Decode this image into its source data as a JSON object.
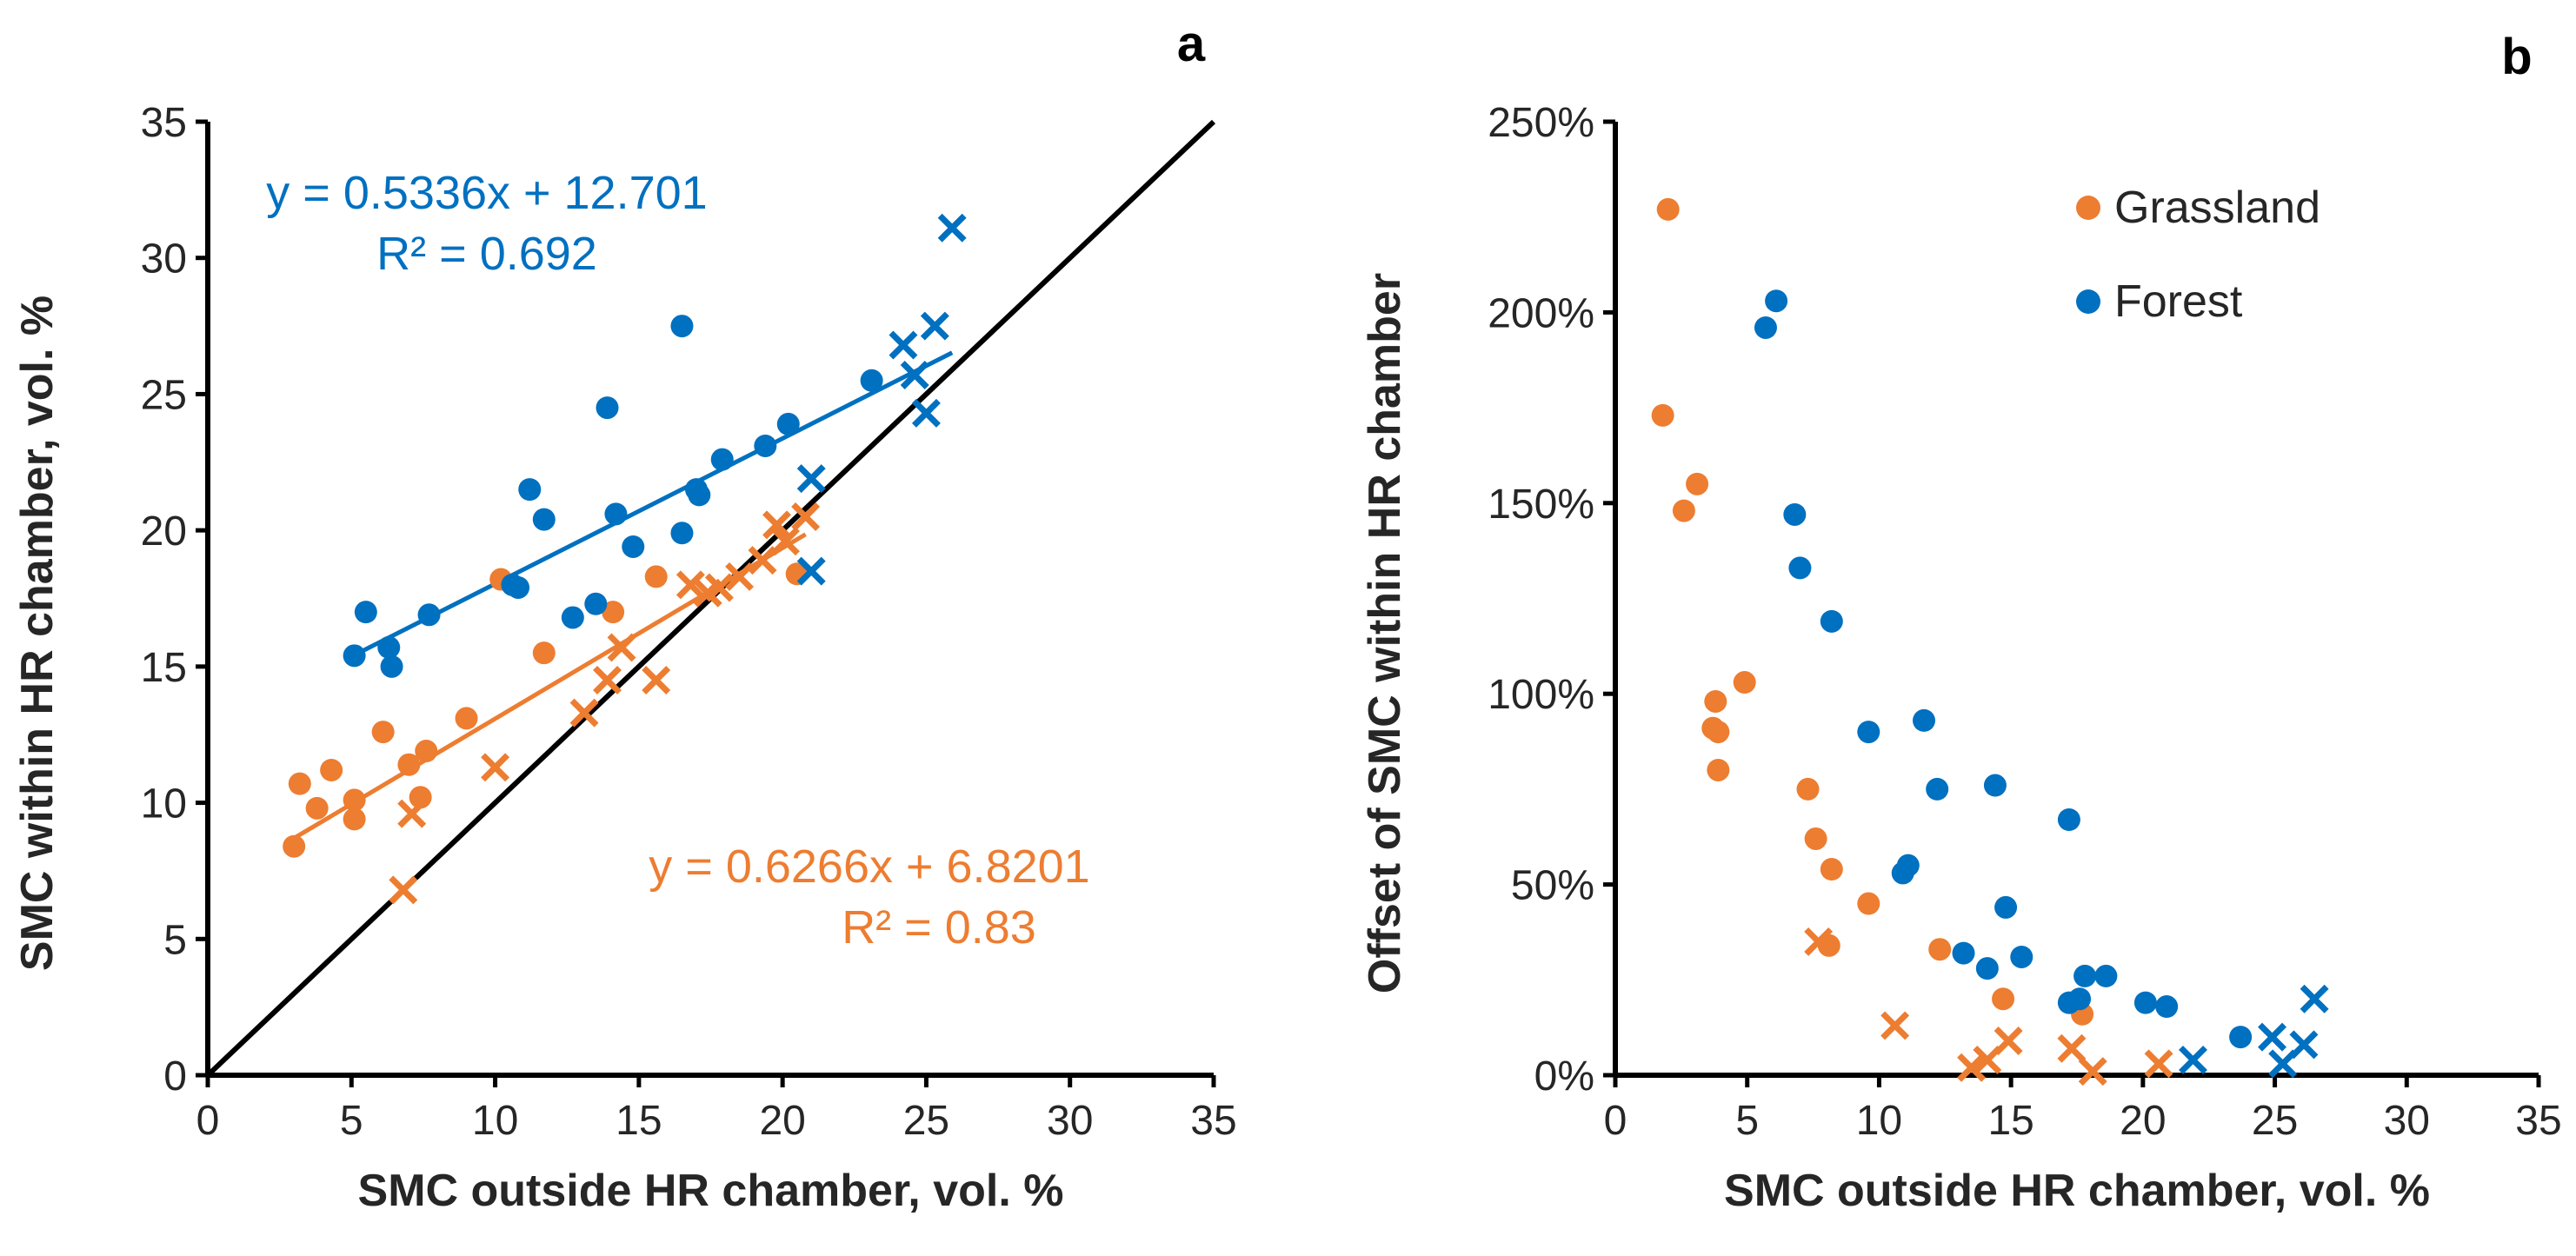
{
  "colors": {
    "grassland": "#ED7D31",
    "forest": "#0070C0",
    "axis": "#000000"
  },
  "chart_data": [
    {
      "type": "scatter",
      "panel_label": "a",
      "xlabel": "SMC outside HR chamber, vol. %",
      "ylabel": "SMC within HR chamber, vol. %",
      "xlim": [
        0,
        35
      ],
      "ylim": [
        0,
        35
      ],
      "xticks": [
        "0",
        "5",
        "10",
        "15",
        "20",
        "25",
        "30",
        "35"
      ],
      "yticks": [
        "0",
        "5",
        "10",
        "15",
        "20",
        "25",
        "30",
        "35"
      ],
      "reference_line": "1:1",
      "series": [
        {
          "name": "Grassland (circle)",
          "color_key": "grassland",
          "marker": "circle",
          "points": [
            [
              3.0,
              8.4
            ],
            [
              3.2,
              10.7
            ],
            [
              3.8,
              9.8
            ],
            [
              4.3,
              11.2
            ],
            [
              5.1,
              10.1
            ],
            [
              5.1,
              9.4
            ],
            [
              6.1,
              12.6
            ],
            [
              7.0,
              11.4
            ],
            [
              7.6,
              11.9
            ],
            [
              7.4,
              10.2
            ],
            [
              9.0,
              13.1
            ],
            [
              10.2,
              18.2
            ],
            [
              11.7,
              15.5
            ],
            [
              14.1,
              17.0
            ],
            [
              15.6,
              18.3
            ],
            [
              20.5,
              18.4
            ]
          ]
        },
        {
          "name": "Grassland (cross)",
          "color_key": "grassland",
          "marker": "x",
          "points": [
            [
              6.8,
              6.8
            ],
            [
              7.1,
              9.6
            ],
            [
              10.0,
              11.3
            ],
            [
              13.1,
              13.3
            ],
            [
              13.9,
              14.5
            ],
            [
              14.4,
              15.7
            ],
            [
              15.6,
              14.5
            ],
            [
              16.8,
              18.0
            ],
            [
              17.4,
              17.7
            ],
            [
              17.8,
              17.9
            ],
            [
              18.5,
              18.3
            ],
            [
              19.3,
              18.9
            ],
            [
              19.8,
              20.2
            ],
            [
              20.1,
              19.6
            ],
            [
              20.8,
              20.5
            ]
          ]
        },
        {
          "name": "Forest (circle)",
          "color_key": "forest",
          "marker": "circle",
          "points": [
            [
              5.1,
              15.4
            ],
            [
              5.5,
              17.0
            ],
            [
              6.3,
              15.7
            ],
            [
              6.4,
              15.0
            ],
            [
              7.7,
              16.9
            ],
            [
              11.2,
              21.5
            ],
            [
              11.7,
              20.4
            ],
            [
              10.8,
              17.9
            ],
            [
              10.6,
              18.0
            ],
            [
              12.7,
              16.8
            ],
            [
              13.5,
              17.3
            ],
            [
              13.9,
              24.5
            ],
            [
              14.2,
              20.6
            ],
            [
              14.8,
              19.4
            ],
            [
              16.5,
              19.9
            ],
            [
              16.5,
              27.5
            ],
            [
              17.0,
              21.5
            ],
            [
              17.1,
              21.3
            ],
            [
              17.9,
              22.6
            ],
            [
              19.4,
              23.1
            ],
            [
              20.2,
              23.9
            ],
            [
              23.1,
              25.5
            ]
          ]
        },
        {
          "name": "Forest (cross)",
          "color_key": "forest",
          "marker": "x",
          "points": [
            [
              21.0,
              21.9
            ],
            [
              21.0,
              18.5
            ],
            [
              24.2,
              26.8
            ],
            [
              24.6,
              25.7
            ],
            [
              25.0,
              24.3
            ],
            [
              25.3,
              27.5
            ],
            [
              25.9,
              31.1
            ]
          ]
        }
      ],
      "trendlines": [
        {
          "color_key": "forest",
          "slope": 0.5336,
          "intercept": 12.701,
          "x_range": [
            5.1,
            25.9
          ],
          "equation": "y = 0.5336x + 12.701",
          "r2": "R² = 0.692"
        },
        {
          "color_key": "grassland",
          "slope": 0.6266,
          "intercept": 6.8201,
          "x_range": [
            3.0,
            20.8
          ],
          "equation": "y = 0.6266x + 6.8201",
          "r2": "R² = 0.83"
        }
      ]
    },
    {
      "type": "scatter",
      "panel_label": "b",
      "xlabel": "SMC outside HR chamber, vol. %",
      "ylabel": "Offset of SMC within HR chamber",
      "xlim": [
        0,
        35
      ],
      "ylim": [
        0,
        250
      ],
      "xticks": [
        "0",
        "5",
        "10",
        "15",
        "20",
        "25",
        "30",
        "35"
      ],
      "yticks": [
        "0%",
        "50%",
        "100%",
        "150%",
        "200%",
        "250%"
      ],
      "legend": {
        "placement": "top-right",
        "entries": [
          {
            "label": "Grassland",
            "color_key": "grassland"
          },
          {
            "label": "Forest",
            "color_key": "forest"
          }
        ]
      },
      "series": [
        {
          "name": "Grassland (circle)",
          "color_key": "grassland",
          "marker": "circle",
          "points": [
            [
              2.0,
              227
            ],
            [
              1.8,
              173
            ],
            [
              2.6,
              148
            ],
            [
              3.1,
              155
            ],
            [
              3.8,
              98
            ],
            [
              3.7,
              91
            ],
            [
              3.9,
              90
            ],
            [
              3.9,
              80
            ],
            [
              4.9,
              103
            ],
            [
              7.3,
              75
            ],
            [
              7.6,
              62
            ],
            [
              8.2,
              54
            ],
            [
              8.1,
              34
            ],
            [
              9.6,
              45
            ],
            [
              12.3,
              33
            ],
            [
              14.7,
              20
            ],
            [
              17.7,
              16
            ]
          ]
        },
        {
          "name": "Grassland (cross)",
          "color_key": "grassland",
          "marker": "x",
          "points": [
            [
              7.7,
              35
            ],
            [
              10.6,
              13
            ],
            [
              13.5,
              2
            ],
            [
              14.1,
              4
            ],
            [
              14.9,
              9
            ],
            [
              17.3,
              7
            ],
            [
              18.1,
              1
            ],
            [
              20.6,
              3
            ]
          ]
        },
        {
          "name": "Forest (circle)",
          "color_key": "forest",
          "marker": "circle",
          "points": [
            [
              5.7,
              196
            ],
            [
              6.1,
              203
            ],
            [
              6.8,
              147
            ],
            [
              7.0,
              133
            ],
            [
              8.2,
              119
            ],
            [
              9.6,
              90
            ],
            [
              11.7,
              93
            ],
            [
              12.2,
              75
            ],
            [
              11.1,
              55
            ],
            [
              10.9,
              53
            ],
            [
              14.4,
              76
            ],
            [
              14.8,
              44
            ],
            [
              17.2,
              67
            ],
            [
              13.2,
              32
            ],
            [
              14.1,
              28
            ],
            [
              15.4,
              31
            ],
            [
              17.8,
              26
            ],
            [
              17.6,
              20
            ],
            [
              18.6,
              26
            ],
            [
              17.2,
              19
            ],
            [
              20.1,
              19
            ],
            [
              20.9,
              18
            ],
            [
              23.7,
              10
            ]
          ]
        },
        {
          "name": "Forest (cross)",
          "color_key": "forest",
          "marker": "x",
          "points": [
            [
              21.9,
              4
            ],
            [
              24.9,
              10
            ],
            [
              25.3,
              3
            ],
            [
              26.1,
              8
            ],
            [
              26.5,
              20
            ]
          ]
        }
      ]
    }
  ]
}
